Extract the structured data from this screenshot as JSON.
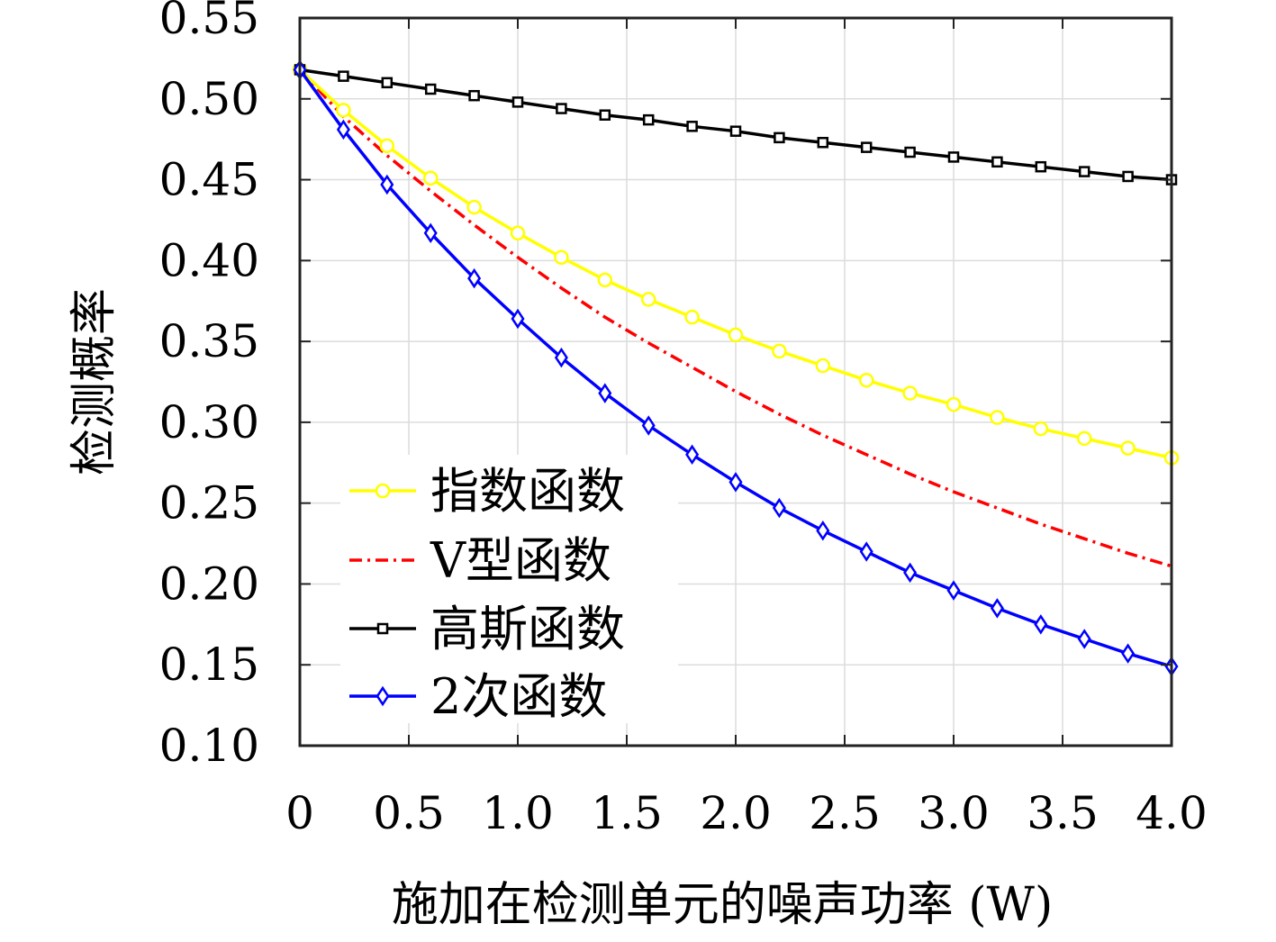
{
  "chart_data": {
    "type": "line",
    "title": "",
    "xlabel": "施加在检测单元的噪声功率 (W)",
    "ylabel": "检测概率",
    "xlim": [
      0,
      4.0
    ],
    "ylim": [
      0.1,
      0.55
    ],
    "xticks": [
      "0",
      "0.5",
      "1.0",
      "1.5",
      "2.0",
      "2.5",
      "3.0",
      "3.5",
      "4.0"
    ],
    "yticks": [
      "0.10",
      "0.15",
      "0.20",
      "0.25",
      "0.30",
      "0.35",
      "0.40",
      "0.45",
      "0.50",
      "0.55"
    ],
    "grid": true,
    "legend_position": "bottom-left",
    "x": [
      0,
      0.2,
      0.4,
      0.6,
      0.8,
      1.0,
      1.2,
      1.4,
      1.6,
      1.8,
      2.0,
      2.2,
      2.4,
      2.6,
      2.8,
      3.0,
      3.2,
      3.4,
      3.6,
      3.8,
      4.0
    ],
    "series": [
      {
        "name": "指数函数",
        "color": "#ffff00",
        "marker": "circle",
        "dash": "solid",
        "values": [
          0.518,
          0.493,
          0.471,
          0.451,
          0.433,
          0.417,
          0.402,
          0.388,
          0.376,
          0.365,
          0.354,
          0.344,
          0.335,
          0.326,
          0.318,
          0.311,
          0.303,
          0.296,
          0.29,
          0.284,
          0.278
        ]
      },
      {
        "name": "V型函数",
        "color": "#ff0000",
        "marker": "none",
        "dash": "dashdot",
        "values": [
          0.518,
          0.489,
          0.465,
          0.443,
          0.422,
          0.402,
          0.383,
          0.365,
          0.349,
          0.334,
          0.319,
          0.305,
          0.292,
          0.28,
          0.268,
          0.257,
          0.247,
          0.237,
          0.228,
          0.219,
          0.211
        ]
      },
      {
        "name": "高斯函数",
        "color": "#000000",
        "marker": "square",
        "dash": "solid",
        "values": [
          0.518,
          0.514,
          0.51,
          0.506,
          0.502,
          0.498,
          0.494,
          0.49,
          0.487,
          0.483,
          0.48,
          0.476,
          0.473,
          0.47,
          0.467,
          0.464,
          0.461,
          0.458,
          0.455,
          0.452,
          0.45
        ]
      },
      {
        "name": "2次函数",
        "color": "#0000ff",
        "marker": "diamond",
        "dash": "solid",
        "values": [
          0.518,
          0.481,
          0.447,
          0.417,
          0.389,
          0.364,
          0.34,
          0.318,
          0.298,
          0.28,
          0.263,
          0.247,
          0.233,
          0.22,
          0.207,
          0.196,
          0.185,
          0.175,
          0.166,
          0.157,
          0.149
        ]
      }
    ]
  }
}
